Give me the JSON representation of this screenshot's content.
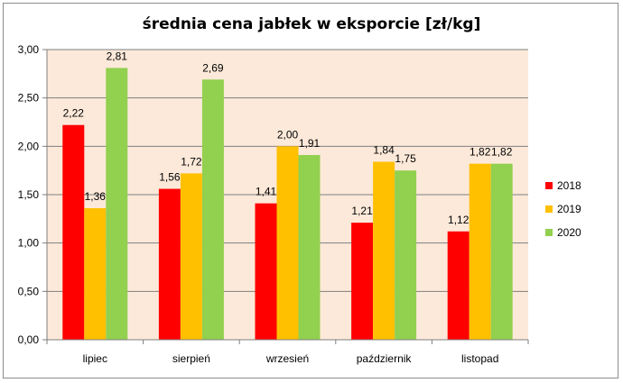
{
  "chart_data": {
    "type": "bar",
    "title": "średnia cena jabłek w eksporcie [zł/kg]",
    "xlabel": "",
    "ylabel": "",
    "categories": [
      "lipiec",
      "sierpień",
      "wrzesień",
      "październik",
      "listopad"
    ],
    "series": [
      {
        "name": "2018",
        "color": "#ff0000",
        "values": [
          2.22,
          1.56,
          1.41,
          1.21,
          1.12
        ]
      },
      {
        "name": "2019",
        "color": "#ffc000",
        "values": [
          1.36,
          1.72,
          2.0,
          1.84,
          1.82
        ]
      },
      {
        "name": "2020",
        "color": "#92d050",
        "values": [
          2.81,
          2.69,
          1.91,
          1.75,
          1.82
        ]
      }
    ],
    "data_labels": [
      [
        "2,22",
        "1,56",
        "1,41",
        "1,21",
        "1,12"
      ],
      [
        "1,36",
        "1,72",
        "2,00",
        "1,84",
        "1,82"
      ],
      [
        "2,81",
        "2,69",
        "1,91",
        "1,75",
        "1,82"
      ]
    ],
    "ylim": [
      0,
      3
    ],
    "yticks": [
      0,
      0.5,
      1,
      1.5,
      2,
      2.5,
      3
    ],
    "ytick_labels": [
      "0,00",
      "0,50",
      "1,00",
      "1,50",
      "2,00",
      "2,50",
      "3,00"
    ],
    "grid": true,
    "plot_background": "#fde9d9",
    "legend_position": "right"
  }
}
